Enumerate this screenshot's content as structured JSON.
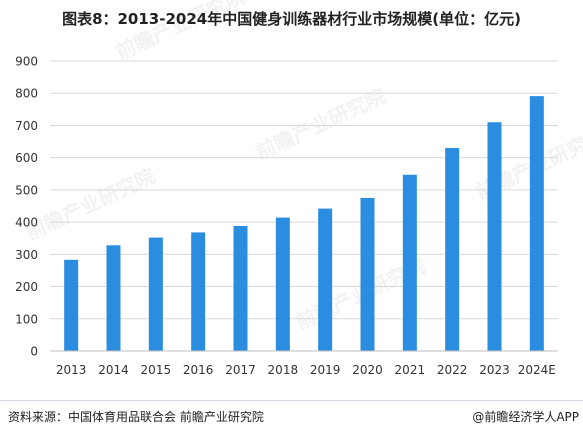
{
  "title": "图表8：2013-2024年中国健身训练器材行业市场规模(单位：亿元)",
  "source": "资料来源：中国体育用品联合会 前瞻产业研究院",
  "copyright": "@前瞻经济学人APP",
  "watermark": "前瞻产业研究院",
  "colors": {
    "bar": "#2a8de0",
    "grid": "#d9d9d9",
    "axis": "#bfbfbf",
    "text": "#333333"
  },
  "chart_data": {
    "type": "bar",
    "categories": [
      "2013",
      "2014",
      "2015",
      "2016",
      "2017",
      "2018",
      "2019",
      "2020",
      "2021",
      "2022",
      "2023",
      "2024E"
    ],
    "values": [
      283,
      328,
      352,
      368,
      388,
      414,
      442,
      475,
      547,
      630,
      710,
      791
    ],
    "ylim": [
      0,
      900
    ],
    "yticks": [
      0,
      100,
      200,
      300,
      400,
      500,
      600,
      700,
      800,
      900
    ],
    "grid": true,
    "legend": "none"
  }
}
